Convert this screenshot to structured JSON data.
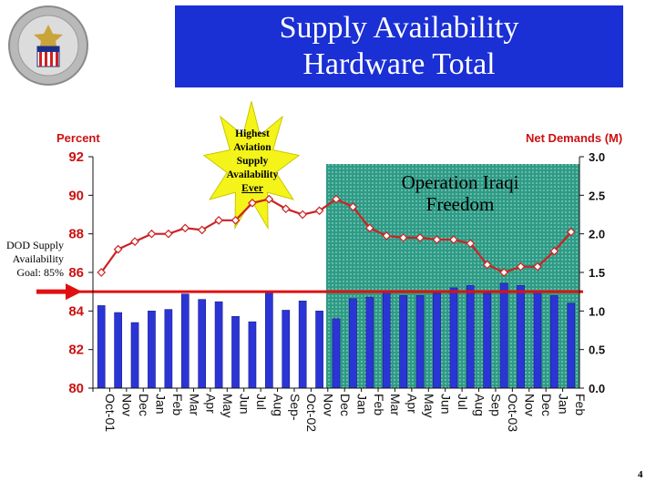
{
  "slide": {
    "title_line1": "Supply Availability",
    "title_line2": "Hardware Total",
    "page_number": "4",
    "oif_label_line1": "Operation Iraqi",
    "oif_label_line2": "Freedom",
    "callout": {
      "line1": "Highest",
      "line2": "Aviation",
      "line3": "Supply",
      "line4": "Availability",
      "line5": "Ever"
    },
    "goal_note": {
      "line1": "DOD Supply",
      "line2": "Availability",
      "line3": "Goal: 85%"
    },
    "colors": {
      "title_bg": "#1a2fd4",
      "bar": "#2b35d6",
      "line": "#cc2222",
      "oif_bg": "#2e9b86",
      "goal_line": "#e01010"
    }
  },
  "chart_data": {
    "type": "bar+line",
    "left_axis_title": "Percent",
    "right_axis_title": "Net Demands (M)",
    "left_ylim": [
      80,
      92
    ],
    "left_ticks": [
      "80",
      "82",
      "84",
      "86",
      "88",
      "90",
      "92"
    ],
    "right_ylim": [
      0.0,
      3.0
    ],
    "right_ticks": [
      "0.0",
      "0.5",
      "1.0",
      "1.5",
      "2.0",
      "2.5",
      "3.0"
    ],
    "categories": [
      "Oct-01",
      "Nov",
      "Dec",
      "Jan",
      "Feb",
      "Mar",
      "Apr",
      "May",
      "Jun",
      "Jul",
      "Aug",
      "Sep-",
      "Oct-02",
      "Nov",
      "Dec",
      "Jan",
      "Feb",
      "Mar",
      "Apr",
      "May",
      "Jun",
      "Jul",
      "Aug",
      "Sep",
      "Oct-03",
      "Nov",
      "Dec",
      "Jan",
      "Feb"
    ],
    "series": [
      {
        "name": "Net Demands (M)",
        "kind": "bar",
        "axis": "right",
        "values": [
          1.07,
          0.98,
          0.85,
          1.0,
          1.02,
          1.22,
          1.15,
          1.12,
          0.93,
          0.86,
          1.26,
          1.01,
          1.13,
          1.0,
          0.9,
          1.16,
          1.18,
          1.25,
          1.2,
          1.2,
          1.23,
          1.3,
          1.33,
          1.23,
          1.36,
          1.33,
          1.24,
          1.2,
          1.1
        ]
      },
      {
        "name": "Supply Availability (%)",
        "kind": "line",
        "axis": "left",
        "values": [
          86.0,
          87.2,
          87.6,
          88.0,
          88.0,
          88.3,
          88.2,
          88.7,
          88.7,
          89.6,
          89.8,
          89.3,
          89.0,
          89.2,
          89.8,
          89.4,
          88.3,
          87.9,
          87.8,
          87.8,
          87.7,
          87.7,
          87.5,
          86.4,
          86.0,
          86.3,
          86.3,
          87.1,
          88.1
        ]
      }
    ],
    "goal_line_value": 85,
    "highlight_range": [
      "Dec",
      "Feb"
    ],
    "grid": false
  }
}
